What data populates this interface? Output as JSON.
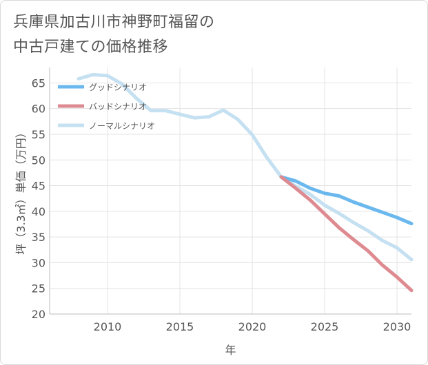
{
  "title_lines": [
    "兵庫県加古川市神野町福留の",
    "中古戸建ての価格推移"
  ],
  "chart_data": {
    "type": "line",
    "xlabel": "年",
    "ylabel": "坪（3.3㎡）単価（万円）",
    "xlim": [
      2006,
      2031
    ],
    "ylim": [
      20,
      68
    ],
    "x_ticks": [
      2010,
      2015,
      2020,
      2025,
      2030
    ],
    "y_ticks": [
      20,
      25,
      30,
      35,
      40,
      45,
      50,
      55,
      60,
      65
    ],
    "grid": true,
    "legend_position": "top-left",
    "series": [
      {
        "name": "グッドシナリオ",
        "color": "#6ab8ee",
        "x": [
          2022,
          2023,
          2024,
          2025,
          2026,
          2027,
          2028,
          2029,
          2030,
          2031
        ],
        "y": [
          46.7,
          45.9,
          44.5,
          43.5,
          43.0,
          41.8,
          40.8,
          39.8,
          38.8,
          37.6
        ]
      },
      {
        "name": "バッドシナリオ",
        "color": "#de8a91",
        "x": [
          2022,
          2023,
          2024,
          2025,
          2026,
          2027,
          2028,
          2029,
          2030,
          2031
        ],
        "y": [
          46.7,
          44.5,
          42.2,
          39.5,
          36.8,
          34.5,
          32.3,
          29.5,
          27.2,
          24.6
        ]
      },
      {
        "name": "ノーマルシナリオ",
        "color": "#c4e0f1",
        "x": [
          2008,
          2009,
          2010,
          2011,
          2012,
          2013,
          2014,
          2015,
          2016,
          2017,
          2018,
          2019,
          2020,
          2021,
          2022,
          2023,
          2024,
          2025,
          2026,
          2027,
          2028,
          2029,
          2030,
          2031
        ],
        "y": [
          65.8,
          66.6,
          66.4,
          64.8,
          62.0,
          59.6,
          59.6,
          58.9,
          58.2,
          58.4,
          59.7,
          57.9,
          54.9,
          50.5,
          46.7,
          44.9,
          43.3,
          41.2,
          39.6,
          37.8,
          36.2,
          34.3,
          32.9,
          30.6
        ]
      }
    ]
  }
}
